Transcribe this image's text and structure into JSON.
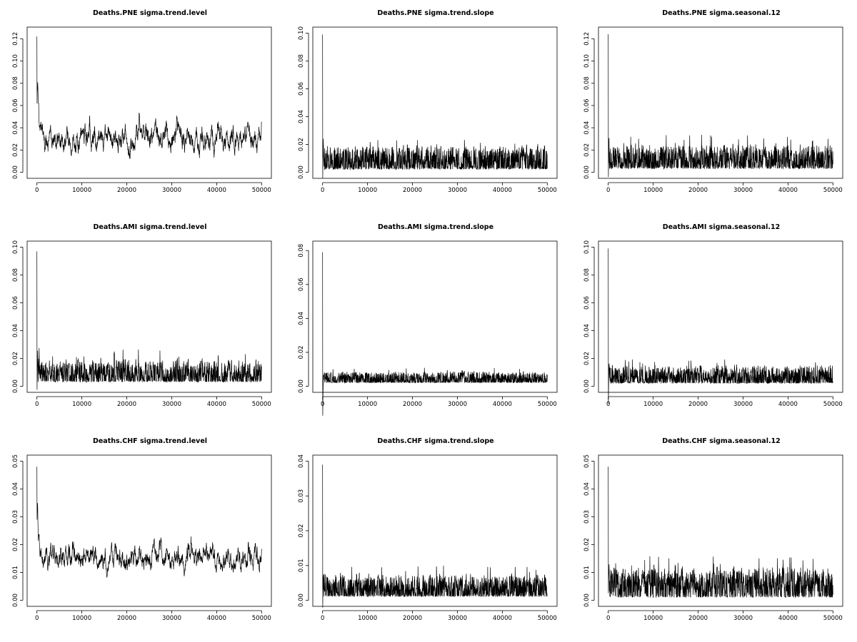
{
  "chart_data": [
    {
      "type": "line",
      "title": "Deaths.PNE sigma.trend.level",
      "xlim": [
        0,
        50000
      ],
      "ylim": [
        0,
        0.125
      ],
      "xticks": [
        0,
        10000,
        20000,
        30000,
        40000,
        50000
      ],
      "yticks": [
        0.0,
        0.02,
        0.04,
        0.06,
        0.08,
        0.1,
        0.12
      ],
      "xtick_labels": [
        "0",
        "10000",
        "20000",
        "30000",
        "40000",
        "50000"
      ],
      "ytick_labels": [
        "0.00",
        "0.02",
        "0.04",
        "0.06",
        "0.08",
        "0.10",
        "0.12"
      ],
      "trace": {
        "start": 0.122,
        "center": 0.03,
        "lo": 0.004,
        "hi": 0.081,
        "smooth": 0.85
      }
    },
    {
      "type": "line",
      "title": "Deaths.PNE sigma.trend.slope",
      "xlim": [
        0,
        50000
      ],
      "ylim": [
        0,
        0.1
      ],
      "xticks": [
        0,
        10000,
        20000,
        30000,
        40000,
        50000
      ],
      "yticks": [
        0.0,
        0.02,
        0.04,
        0.06,
        0.08,
        0.1
      ],
      "xtick_labels": [
        "0",
        "10000",
        "20000",
        "30000",
        "40000",
        "50000"
      ],
      "ytick_labels": [
        "0.00",
        "0.02",
        "0.04",
        "0.06",
        "0.08",
        "0.10"
      ],
      "trace": {
        "start": 0.099,
        "center": 0.007,
        "lo": 0.002,
        "hi": 0.026,
        "smooth": 0.2
      }
    },
    {
      "type": "line",
      "title": "Deaths.PNE sigma.seasonal.12",
      "xlim": [
        0,
        50000
      ],
      "ylim": [
        0,
        0.125
      ],
      "xticks": [
        0,
        10000,
        20000,
        30000,
        40000,
        50000
      ],
      "yticks": [
        0.0,
        0.02,
        0.04,
        0.06,
        0.08,
        0.1,
        0.12
      ],
      "xtick_labels": [
        "0",
        "10000",
        "20000",
        "30000",
        "40000",
        "50000"
      ],
      "ytick_labels": [
        "0.00",
        "0.02",
        "0.04",
        "0.06",
        "0.08",
        "0.10",
        "0.12"
      ],
      "trace": {
        "start": 0.124,
        "center": 0.009,
        "lo": 0.003,
        "hi": 0.034,
        "smooth": 0.25
      }
    },
    {
      "type": "line",
      "title": "Deaths.AMI sigma.trend.level",
      "xlim": [
        0,
        50000
      ],
      "ylim": [
        0,
        0.1
      ],
      "xticks": [
        0,
        10000,
        20000,
        30000,
        40000,
        50000
      ],
      "yticks": [
        0.0,
        0.02,
        0.04,
        0.06,
        0.08,
        0.1
      ],
      "xtick_labels": [
        "0",
        "10000",
        "20000",
        "30000",
        "40000",
        "50000"
      ],
      "ytick_labels": [
        "0.00",
        "0.02",
        "0.04",
        "0.06",
        "0.08",
        "0.10"
      ],
      "trace": {
        "start": 0.097,
        "center": 0.008,
        "lo": 0.003,
        "hi": 0.028,
        "smooth": 0.4
      }
    },
    {
      "type": "line",
      "title": "Deaths.AMI sigma.trend.slope",
      "xlim": [
        0,
        50000
      ],
      "ylim": [
        0,
        0.082
      ],
      "xticks": [
        0,
        10000,
        20000,
        30000,
        40000,
        50000
      ],
      "yticks": [
        0.0,
        0.02,
        0.04,
        0.06,
        0.08
      ],
      "xtick_labels": [
        "0",
        "10000",
        "20000",
        "30000",
        "40000",
        "50000"
      ],
      "ytick_labels": [
        "0.00",
        "0.02",
        "0.04",
        "0.06",
        "0.08"
      ],
      "trace": {
        "start": 0.079,
        "center": 0.004,
        "lo": 0.002,
        "hi": 0.011,
        "smooth": 0.15
      }
    },
    {
      "type": "line",
      "title": "Deaths.AMI sigma.seasonal.12",
      "xlim": [
        0,
        50000
      ],
      "ylim": [
        0,
        0.1
      ],
      "xticks": [
        0,
        10000,
        20000,
        30000,
        40000,
        50000
      ],
      "yticks": [
        0.0,
        0.02,
        0.04,
        0.06,
        0.08,
        0.1
      ],
      "xtick_labels": [
        "0",
        "10000",
        "20000",
        "30000",
        "40000",
        "50000"
      ],
      "ytick_labels": [
        "0.00",
        "0.02",
        "0.04",
        "0.06",
        "0.08",
        "0.10"
      ],
      "trace": {
        "start": 0.099,
        "center": 0.006,
        "lo": 0.002,
        "hi": 0.02,
        "smooth": 0.2
      }
    },
    {
      "type": "line",
      "title": "Deaths.CHF sigma.trend.level",
      "xlim": [
        0,
        50000
      ],
      "ylim": [
        0,
        0.05
      ],
      "xticks": [
        0,
        10000,
        20000,
        30000,
        40000,
        50000
      ],
      "yticks": [
        0.0,
        0.01,
        0.02,
        0.03,
        0.04,
        0.05
      ],
      "xtick_labels": [
        "0",
        "10000",
        "20000",
        "30000",
        "40000",
        "50000"
      ],
      "ytick_labels": [
        "0.00",
        "0.01",
        "0.02",
        "0.03",
        "0.04",
        "0.05"
      ],
      "trace": {
        "start": 0.048,
        "center": 0.015,
        "lo": 0.002,
        "hi": 0.035,
        "smooth": 0.85
      }
    },
    {
      "type": "line",
      "title": "Deaths.CHF sigma.trend.slope",
      "xlim": [
        0,
        50000
      ],
      "ylim": [
        0,
        0.04
      ],
      "xticks": [
        0,
        10000,
        20000,
        30000,
        40000,
        50000
      ],
      "yticks": [
        0.0,
        0.01,
        0.02,
        0.03,
        0.04
      ],
      "xtick_labels": [
        "0",
        "10000",
        "20000",
        "30000",
        "40000",
        "50000"
      ],
      "ytick_labels": [
        "0.00",
        "0.01",
        "0.02",
        "0.03",
        "0.04"
      ],
      "trace": {
        "start": 0.039,
        "center": 0.003,
        "lo": 0.001,
        "hi": 0.01,
        "smooth": 0.2
      }
    },
    {
      "type": "line",
      "title": "Deaths.CHF sigma.seasonal.12",
      "xlim": [
        0,
        50000
      ],
      "ylim": [
        0,
        0.05
      ],
      "xticks": [
        0,
        10000,
        20000,
        30000,
        40000,
        50000
      ],
      "yticks": [
        0.0,
        0.01,
        0.02,
        0.03,
        0.04,
        0.05
      ],
      "xtick_labels": [
        "0",
        "10000",
        "20000",
        "30000",
        "40000",
        "50000"
      ],
      "ytick_labels": [
        "0.00",
        "0.01",
        "0.02",
        "0.03",
        "0.04",
        "0.05"
      ],
      "trace": {
        "start": 0.048,
        "center": 0.005,
        "lo": 0.001,
        "hi": 0.016,
        "smooth": 0.25
      }
    }
  ]
}
